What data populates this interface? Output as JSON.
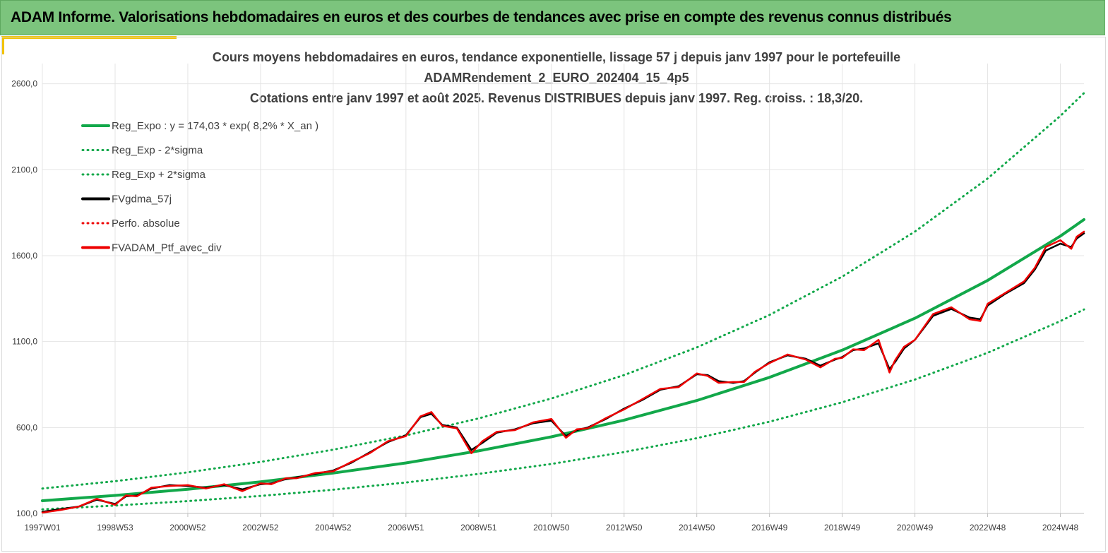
{
  "banner": {
    "title": "ADAM Informe. Valorisations hebdomadaires en euros et des courbes de tendances avec prise en compte des revenus connus distribués"
  },
  "colors": {
    "banner_bg": "#7cc47d",
    "accent_yellow": "#f2c200",
    "trend_green": "#12a84a",
    "perf_red": "#ee0000",
    "gdma_black": "#000000",
    "grid": "#e4e4e4"
  },
  "chart_data": {
    "type": "line",
    "title_lines": [
      "Cours moyens hebdomadaires  en euros, tendance exponentielle, lissage 57 j depuis janv 1997 pour le portefeuille",
      "ADAMRendement_2_EURO_202404_15_4p5",
      "Cotations  entre janv 1997 et août  2025. Revenus DISTRIBUES depuis janv 1997. Reg. croiss. : 18,3/20."
    ],
    "xlabel": "",
    "ylabel": "",
    "x_range": [
      1997.0,
      2025.65
    ],
    "ylim": [
      100,
      2800
    ],
    "y_ticks": [
      100,
      600,
      1100,
      1600,
      2100,
      2600
    ],
    "y_tick_labels": [
      "100,0",
      "600,0",
      "1100,0",
      "1600,0",
      "2100,0",
      "2600,0"
    ],
    "x_ticks": [
      {
        "label": "1997W01",
        "x": 1997.0
      },
      {
        "label": "1998W53",
        "x": 1999.0
      },
      {
        "label": "2000W52",
        "x": 2001.0
      },
      {
        "label": "2002W52",
        "x": 2003.0
      },
      {
        "label": "2004W52",
        "x": 2005.0
      },
      {
        "label": "2006W51",
        "x": 2007.0
      },
      {
        "label": "2008W51",
        "x": 2009.0
      },
      {
        "label": "2010W50",
        "x": 2011.0
      },
      {
        "label": "2012W50",
        "x": 2013.0
      },
      {
        "label": "2014W50",
        "x": 2015.0
      },
      {
        "label": "2016W49",
        "x": 2017.0
      },
      {
        "label": "2018W49",
        "x": 2019.0
      },
      {
        "label": "2020W49",
        "x": 2021.0
      },
      {
        "label": "2022W48",
        "x": 2023.0
      },
      {
        "label": "2024W48",
        "x": 2025.0
      }
    ],
    "grid": true,
    "legend_placement": "top-left",
    "legend": [
      {
        "name": "Reg_Expo : y = 174,03 * exp( 8,2% *  X_an )",
        "color": "#12a84a",
        "style": "solid"
      },
      {
        "name": "Reg_Exp - 2*sigma",
        "color": "#12a84a",
        "style": "dotted"
      },
      {
        "name": "Reg_Exp + 2*sigma",
        "color": "#12a84a",
        "style": "dotted"
      },
      {
        "name": "FVgdma_57j",
        "color": "#000000",
        "style": "solid"
      },
      {
        "name": "Perfo. absolue",
        "color": "#ee0000",
        "style": "dotted"
      },
      {
        "name": "FVADAM_Ptf_avec_div",
        "color": "#ee0000",
        "style": "solid"
      }
    ],
    "series": [
      {
        "name": "Reg_Expo : y = 174,03 * exp( 8,2% *  X_an )",
        "x": [
          1997.0,
          1999.0,
          2001.0,
          2003.0,
          2005.0,
          2007.0,
          2009.0,
          2011.0,
          2013.0,
          2015.0,
          2017.0,
          2019.0,
          2021.0,
          2023.0,
          2025.0,
          2025.65
        ],
        "values": [
          174,
          205,
          241,
          284,
          335,
          394,
          464,
          546,
          643,
          757,
          892,
          1050,
          1236,
          1456,
          1714,
          1810
        ]
      },
      {
        "name": "Reg_Exp - 2*sigma",
        "x": [
          1997.0,
          1999.0,
          2001.0,
          2003.0,
          2005.0,
          2007.0,
          2009.0,
          2011.0,
          2013.0,
          2015.0,
          2017.0,
          2019.0,
          2021.0,
          2023.0,
          2025.0,
          2025.65
        ],
        "values": [
          124,
          146,
          172,
          202,
          238,
          280,
          330,
          388,
          457,
          538,
          634,
          747,
          879,
          1035,
          1219,
          1287
        ]
      },
      {
        "name": "Reg_Exp + 2*sigma",
        "x": [
          1997.0,
          1999.0,
          2001.0,
          2003.0,
          2005.0,
          2007.0,
          2009.0,
          2011.0,
          2013.0,
          2015.0,
          2017.0,
          2019.0,
          2021.0,
          2023.0,
          2025.0,
          2025.65
        ],
        "values": [
          245,
          288,
          339,
          400,
          471,
          554,
          653,
          769,
          905,
          1066,
          1255,
          1478,
          1740,
          2049,
          2413,
          2546
        ]
      },
      {
        "name": "FVgdma_57j",
        "x": [
          1997.0,
          1997.5,
          1998.0,
          1998.5,
          1999.0,
          1999.3,
          1999.6,
          2000.0,
          2000.5,
          2001.0,
          2001.5,
          2002.0,
          2002.5,
          2003.0,
          2003.3,
          2003.7,
          2004.0,
          2004.5,
          2005.0,
          2005.5,
          2006.0,
          2006.5,
          2007.0,
          2007.4,
          2007.7,
          2008.0,
          2008.4,
          2008.8,
          2009.1,
          2009.5,
          2010.0,
          2010.5,
          2011.0,
          2011.4,
          2011.7,
          2012.0,
          2012.5,
          2013.0,
          2013.5,
          2014.0,
          2014.5,
          2015.0,
          2015.3,
          2015.6,
          2016.0,
          2016.3,
          2016.6,
          2017.0,
          2017.5,
          2018.0,
          2018.4,
          2018.8,
          2019.0,
          2019.3,
          2019.6,
          2020.0,
          2020.3,
          2020.45,
          2020.7,
          2021.0,
          2021.5,
          2022.0,
          2022.5,
          2022.8,
          2023.0,
          2023.5,
          2024.0,
          2024.3,
          2024.6,
          2025.0,
          2025.3,
          2025.45,
          2025.65
        ],
        "values": [
          110,
          125,
          140,
          180,
          155,
          200,
          205,
          245,
          265,
          260,
          250,
          265,
          240,
          270,
          275,
          300,
          310,
          330,
          350,
          395,
          455,
          515,
          555,
          660,
          680,
          615,
          600,
          470,
          510,
          570,
          590,
          625,
          640,
          550,
          585,
          600,
          650,
          710,
          760,
          820,
          840,
          910,
          905,
          870,
          860,
          870,
          920,
          980,
          1020,
          1000,
          960,
          995,
          1010,
          1050,
          1060,
          1090,
          940,
          980,
          1060,
          1110,
          1250,
          1290,
          1240,
          1230,
          1310,
          1380,
          1440,
          1520,
          1630,
          1670,
          1650,
          1700,
          1730
        ]
      },
      {
        "name": "FVADAM_Ptf_avec_div",
        "x": [
          1997.0,
          1997.5,
          1998.0,
          1998.5,
          1999.0,
          1999.3,
          1999.6,
          2000.0,
          2000.5,
          2001.0,
          2001.5,
          2002.0,
          2002.5,
          2003.0,
          2003.3,
          2003.7,
          2004.0,
          2004.5,
          2005.0,
          2005.5,
          2006.0,
          2006.5,
          2007.0,
          2007.4,
          2007.7,
          2008.0,
          2008.4,
          2008.8,
          2009.1,
          2009.5,
          2010.0,
          2010.5,
          2011.0,
          2011.4,
          2011.7,
          2012.0,
          2012.5,
          2013.0,
          2013.5,
          2014.0,
          2014.5,
          2015.0,
          2015.3,
          2015.6,
          2016.0,
          2016.3,
          2016.6,
          2017.0,
          2017.5,
          2018.0,
          2018.4,
          2018.8,
          2019.0,
          2019.3,
          2019.6,
          2020.0,
          2020.3,
          2020.45,
          2020.7,
          2021.0,
          2021.5,
          2022.0,
          2022.5,
          2022.8,
          2023.0,
          2023.5,
          2024.0,
          2024.3,
          2024.6,
          2025.0,
          2025.3,
          2025.45,
          2025.65
        ],
        "values": [
          105,
          120,
          140,
          185,
          150,
          205,
          200,
          250,
          260,
          265,
          245,
          270,
          230,
          275,
          270,
          305,
          305,
          335,
          345,
          400,
          450,
          520,
          550,
          665,
          690,
          610,
          595,
          450,
          520,
          575,
          585,
          630,
          650,
          540,
          590,
          595,
          655,
          705,
          765,
          825,
          835,
          915,
          900,
          860,
          865,
          865,
          925,
          975,
          1025,
          995,
          950,
          1000,
          1005,
          1055,
          1050,
          1110,
          920,
          990,
          1070,
          1110,
          1260,
          1300,
          1230,
          1220,
          1320,
          1385,
          1450,
          1530,
          1650,
          1690,
          1640,
          1710,
          1740
        ]
      }
    ]
  }
}
